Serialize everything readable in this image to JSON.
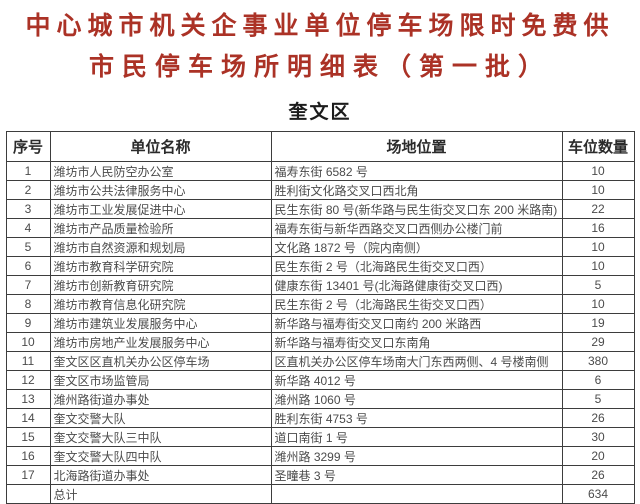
{
  "title": {
    "line1": "中心城市机关企事业单位停车场限时免费供",
    "line2": "市民停车场所明细表（第一批）"
  },
  "section": "奎文区",
  "colors": {
    "title_red": "#ab3226",
    "table_border": "#3d3d3d",
    "body_text": "#4b4b4b"
  },
  "table": {
    "headers": [
      "序号",
      "单位名称",
      "场地位置",
      "车位数量"
    ],
    "rows": [
      {
        "no": "1",
        "name": "潍坊市人民防空办公室",
        "location": "福寿东街 6582 号",
        "count": "10"
      },
      {
        "no": "2",
        "name": "潍坊市公共法律服务中心",
        "location": "胜利街文化路交叉口西北角",
        "count": "10"
      },
      {
        "no": "3",
        "name": "潍坊市工业发展促进中心",
        "location": "民生东街 80 号(新华路与民生街交叉口东 200 米路南)",
        "count": "22"
      },
      {
        "no": "4",
        "name": "潍坊市产品质量检验所",
        "location": "福寿东街与新华西路交叉口西侧办公楼门前",
        "count": "16"
      },
      {
        "no": "5",
        "name": "潍坊市自然资源和规划局",
        "location": "文化路 1872 号（院内南侧）",
        "count": "10"
      },
      {
        "no": "6",
        "name": "潍坊市教育科学研究院",
        "location": "民生东街 2 号（北海路民生街交叉口西）",
        "count": "10"
      },
      {
        "no": "7",
        "name": "潍坊市创新教育研究院",
        "location": "健康东街 13401 号(北海路健康街交叉口西)",
        "count": "5"
      },
      {
        "no": "8",
        "name": "潍坊市教育信息化研究院",
        "location": "民生东街 2 号（北海路民生街交叉口西）",
        "count": "10"
      },
      {
        "no": "9",
        "name": "潍坊市建筑业发展服务中心",
        "location": "新华路与福寿街交叉口南约 200 米路西",
        "count": "19"
      },
      {
        "no": "10",
        "name": "潍坊市房地产业发展服务中心",
        "location": "新华路与福寿街交叉口东南角",
        "count": "29"
      },
      {
        "no": "11",
        "name": "奎文区区直机关办公区停车场",
        "location": "区直机关办公区停车场南大门东西两侧、4 号楼南侧",
        "count": "380"
      },
      {
        "no": "12",
        "name": "奎文区市场监管局",
        "location": "新华路 4012 号",
        "count": "6"
      },
      {
        "no": "13",
        "name": "潍州路街道办事处",
        "location": "潍州路 1060 号",
        "count": "5"
      },
      {
        "no": "14",
        "name": "奎文交警大队",
        "location": "胜利东街 4753 号",
        "count": "26"
      },
      {
        "no": "15",
        "name": "奎文交警大队三中队",
        "location": "道口南街 1 号",
        "count": "30"
      },
      {
        "no": "16",
        "name": "奎文交警大队四中队",
        "location": "潍州路 3299 号",
        "count": "20"
      },
      {
        "no": "17",
        "name": "北海路街道办事处",
        "location": "圣疃巷 3 号",
        "count": "26"
      }
    ],
    "total": {
      "no": "",
      "label": "总计",
      "location": "",
      "count": "634"
    }
  }
}
